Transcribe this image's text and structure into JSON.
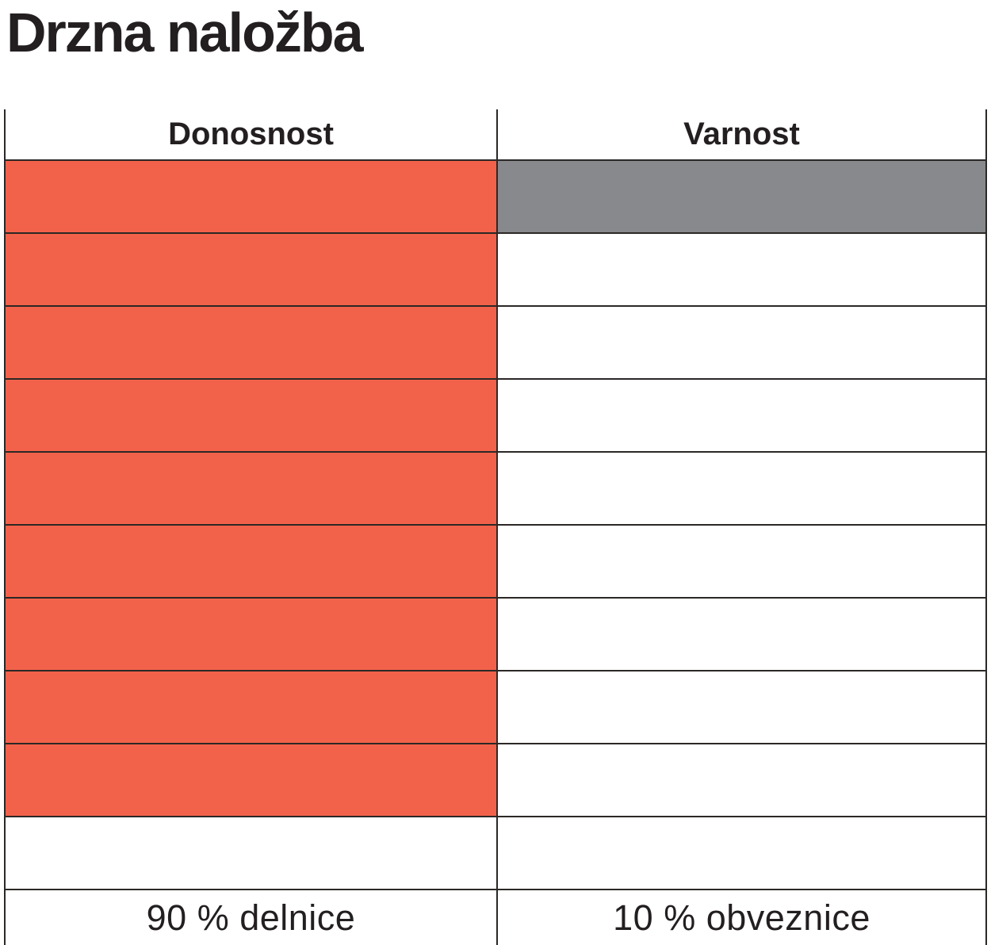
{
  "title": "Drzna naložba",
  "table": {
    "rows_total": 10,
    "columns": [
      {
        "header": "Donosnost",
        "footer_label": "90 % delnice",
        "filled_cells": 9,
        "fill_color": "#F2624A"
      },
      {
        "header": "Varnost",
        "footer_label": "10 % obveznice",
        "filled_cells": 1,
        "fill_color": "#87898C"
      }
    ]
  },
  "colors": {
    "accent_orange": "#F2624A",
    "accent_gray": "#87898C",
    "border": "#2B2826",
    "text": "#231F20",
    "background": "#FFFFFF"
  },
  "chart_data": {
    "type": "bar",
    "title": "Drzna naložba",
    "categories": [
      "Donosnost",
      "Varnost"
    ],
    "values": [
      9,
      1
    ],
    "scale": [
      0,
      10
    ],
    "units_per_cell": 1,
    "value_labels": [
      "90 % delnice",
      "10 % obveznice"
    ],
    "series_colors": [
      "#F2624A",
      "#87898C"
    ],
    "fill_direction": "top-down",
    "grid": true,
    "legend": "none"
  }
}
